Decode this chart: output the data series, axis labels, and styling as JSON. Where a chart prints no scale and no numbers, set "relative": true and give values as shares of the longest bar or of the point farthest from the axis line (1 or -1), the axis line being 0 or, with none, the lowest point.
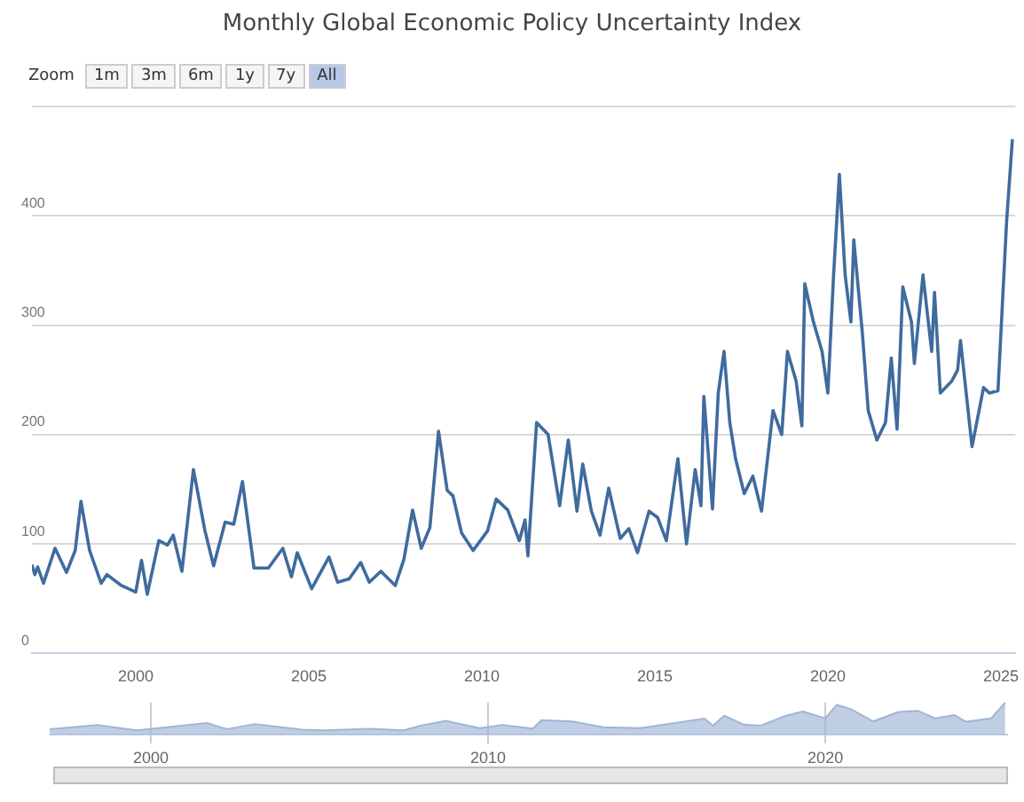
{
  "chart_data": [
    {
      "type": "line",
      "title": "Monthly Global Economic Policy Uncertainty Index",
      "annotations": [
        "Zoom",
        "1m",
        "3m",
        "6m",
        "1y",
        "7y",
        "All"
      ],
      "xlim": [
        "1997-01",
        "2025-06"
      ],
      "xticks": [
        "2000",
        "2005",
        "2010",
        "2015",
        "2020",
        "2025"
      ],
      "ylim": [
        0,
        500
      ],
      "yticks": [
        0,
        100,
        200,
        300,
        400,
        {
          "value": 500,
          "label": null
        }
      ],
      "grid": "y",
      "legend": false,
      "marker": "none",
      "series": [
        {
          "color": "#3f6b9f",
          "x": [
            "1997-01",
            "1997-02",
            "1997-03",
            "1997-05",
            "1997-09",
            "1998-01",
            "1998-04",
            "1998-06",
            "1998-09",
            "1999-01",
            "1999-03",
            "1999-08",
            "2000-01",
            "2000-03",
            "2000-05",
            "2000-09",
            "2000-12",
            "2001-02",
            "2001-05",
            "2001-09",
            "2002-01",
            "2002-04",
            "2002-08",
            "2002-11",
            "2003-02",
            "2003-06",
            "2003-11",
            "2004-04",
            "2004-07",
            "2004-09",
            "2005-02",
            "2005-08",
            "2005-11",
            "2006-03",
            "2006-07",
            "2006-10",
            "2007-02",
            "2007-07",
            "2007-10",
            "2008-01",
            "2008-04",
            "2008-07",
            "2008-10",
            "2009-01",
            "2009-03",
            "2009-06",
            "2009-10",
            "2010-03",
            "2010-06",
            "2010-10",
            "2011-02",
            "2011-04",
            "2011-05",
            "2011-08",
            "2011-12",
            "2012-04",
            "2012-07",
            "2012-10",
            "2012-12",
            "2013-03",
            "2013-06",
            "2013-09",
            "2014-01",
            "2014-04",
            "2014-07",
            "2014-11",
            "2015-02",
            "2015-05",
            "2015-09",
            "2015-12",
            "2016-03",
            "2016-05",
            "2016-06",
            "2016-09",
            "2016-11",
            "2017-01",
            "2017-03",
            "2017-05",
            "2017-08",
            "2017-11",
            "2018-02",
            "2018-06",
            "2018-09",
            "2018-11",
            "2019-02",
            "2019-04",
            "2019-05",
            "2019-08",
            "2019-11",
            "2020-01",
            "2020-03",
            "2020-05",
            "2020-07",
            "2020-09",
            "2020-10",
            "2021-01",
            "2021-03",
            "2021-06",
            "2021-09",
            "2021-11",
            "2022-01",
            "2022-03",
            "2022-06",
            "2022-07",
            "2022-10",
            "2023-01",
            "2023-02",
            "2023-04",
            "2023-08",
            "2023-10",
            "2023-11",
            "2024-03",
            "2024-07",
            "2024-09",
            "2024-12",
            "2025-03",
            "2025-05"
          ],
          "values": [
            81,
            72,
            79,
            64,
            96,
            74,
            94,
            139,
            94,
            64,
            72,
            62,
            56,
            85,
            54,
            103,
            99,
            108,
            75,
            168,
            112,
            80,
            120,
            118,
            157,
            78,
            78,
            96,
            70,
            92,
            59,
            88,
            65,
            68,
            83,
            65,
            75,
            62,
            86,
            131,
            96,
            115,
            203,
            149,
            144,
            110,
            94,
            112,
            141,
            131,
            103,
            122,
            89,
            211,
            200,
            135,
            195,
            130,
            173,
            130,
            108,
            151,
            105,
            114,
            92,
            130,
            124,
            103,
            178,
            100,
            168,
            135,
            235,
            132,
            238,
            276,
            211,
            178,
            146,
            162,
            130,
            222,
            200,
            276,
            249,
            208,
            338,
            303,
            276,
            238,
            346,
            438,
            346,
            303,
            378,
            292,
            222,
            195,
            211,
            270,
            205,
            335,
            303,
            265,
            346,
            276,
            330,
            238,
            249,
            259,
            286,
            189,
            243,
            238,
            240,
            395,
            470
          ]
        }
      ]
    },
    {
      "type": "area",
      "relative": true,
      "tick_labels": "x",
      "grid": "x",
      "legend": false,
      "marker": "none",
      "xlim": [
        "1997-01",
        "2025-06"
      ],
      "xticks": [
        "2000",
        "2010",
        "2020"
      ],
      "series": [
        {
          "color": "#9fb6d6",
          "x": [
            "1997-01",
            "1998-06",
            "1999-08",
            "2001-09",
            "2002-04",
            "2003-02",
            "2004-07",
            "2005-02",
            "2006-07",
            "2007-07",
            "2008-01",
            "2008-10",
            "2009-10",
            "2010-06",
            "2011-05",
            "2011-08",
            "2012-07",
            "2013-06",
            "2014-07",
            "2015-09",
            "2016-06",
            "2016-09",
            "2017-01",
            "2017-08",
            "2018-02",
            "2018-11",
            "2019-05",
            "2020-01",
            "2020-05",
            "2020-10",
            "2021-06",
            "2022-03",
            "2022-10",
            "2023-04",
            "2023-11",
            "2024-03",
            "2024-12",
            "2025-05"
          ],
          "values": [
            0.17,
            0.3,
            0.13,
            0.36,
            0.17,
            0.33,
            0.15,
            0.13,
            0.18,
            0.13,
            0.28,
            0.43,
            0.2,
            0.3,
            0.19,
            0.45,
            0.41,
            0.23,
            0.2,
            0.38,
            0.5,
            0.28,
            0.59,
            0.31,
            0.28,
            0.59,
            0.72,
            0.51,
            0.93,
            0.8,
            0.41,
            0.71,
            0.74,
            0.51,
            0.61,
            0.4,
            0.51,
            1
          ]
        }
      ]
    }
  ]
}
